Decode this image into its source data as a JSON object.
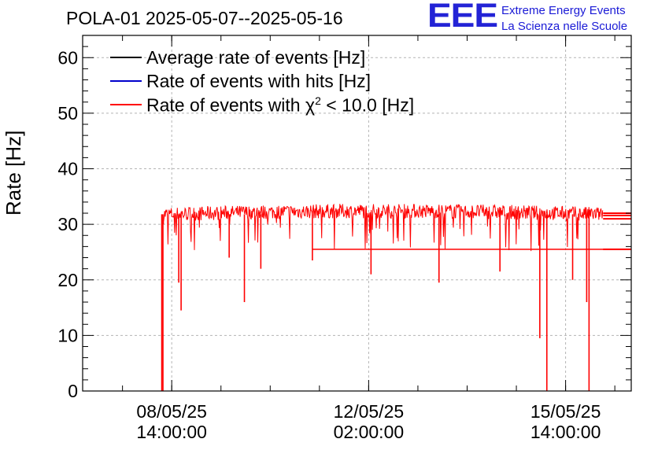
{
  "title": "POLA-01 2025-05-07--2025-05-16",
  "logo": {
    "mark": "EEE",
    "line1": "Extreme Energy Events",
    "line2": "La Scienza nelle Scuole"
  },
  "chart_data": {
    "type": "line",
    "ylabel": "Rate [Hz]",
    "ylim": [
      0,
      64
    ],
    "yticks": [
      0,
      10,
      20,
      30,
      40,
      50,
      60
    ],
    "grid": true,
    "legend_placement": "top-left",
    "xticks": [
      {
        "line1": "08/05/25",
        "line2": "14:00:00"
      },
      {
        "line1": "12/05/25",
        "line2": "02:00:00"
      },
      {
        "line1": "15/05/25",
        "line2": "14:00:00"
      }
    ],
    "x_range_days": {
      "start": "2025-05-07",
      "end": "2025-05-16"
    },
    "legend": [
      {
        "name": "Average rate of events [Hz]",
        "color": "#000000"
      },
      {
        "name": "Rate of events with hits [Hz]",
        "color": "#0000cc"
      },
      {
        "name_prefix": "Rate of events with ",
        "symbol": "χ",
        "superscript": "2",
        "name_suffix": " < 10.0 [Hz]",
        "color": "#ff0000"
      }
    ],
    "series": [
      {
        "color": "#ff0000",
        "x": [
          "08/05/25 09:30",
          "08/05/25 10:00",
          "08/05/25 10:30",
          "08/05/25 11:00",
          "08/05/25 12:00",
          "08/05/25 14:00",
          "09/05/25 02:00",
          "09/05/25 14:00",
          "10/05/25 02:00",
          "10/05/25 14:00",
          "11/05/25 02:00",
          "11/05/25 14:00",
          "12/05/25 02:00",
          "12/05/25 14:00",
          "13/05/25 02:00",
          "13/05/25 14:00",
          "14/05/25 02:00",
          "14/05/25 14:00",
          "15/05/25 02:00",
          "15/05/25 14:00",
          "16/05/25 02:00",
          "16/05/25 06:00",
          "16/05/25 12:00"
        ],
        "values": [
          0,
          30,
          0,
          31,
          31.5,
          31.5,
          31.7,
          31.8,
          31.9,
          32,
          32.1,
          32.2,
          32.3,
          32,
          31.9,
          31.8,
          31.7,
          31.8,
          31.6,
          31.7,
          31.7,
          32,
          32
        ],
        "baseline_mean": 31.8,
        "noise_upper": 33.5,
        "dips": [
          {
            "x": "08/05/25 09:45",
            "value": 0
          },
          {
            "x": "08/05/25 10:15",
            "value": 0
          },
          {
            "x": "08/05/25 17:00",
            "value": 19.5
          },
          {
            "x": "08/05/25 18:00",
            "value": 14.5
          },
          {
            "x": "09/05/25 14:30",
            "value": 24
          },
          {
            "x": "09/05/25 21:00",
            "value": 16
          },
          {
            "x": "10/05/25 04:00",
            "value": 22
          },
          {
            "x": "11/05/25 02:00",
            "value": 23.5
          },
          {
            "x": "12/05/25 03:00",
            "value": 21
          },
          {
            "x": "13/05/25 08:00",
            "value": 19.5
          },
          {
            "x": "14/05/25 10:00",
            "value": 21.5
          },
          {
            "x": "15/05/25 03:00",
            "value": 9.5
          },
          {
            "x": "15/05/25 06:00",
            "value": 0
          },
          {
            "x": "15/05/25 17:00",
            "value": 20
          },
          {
            "x": "15/05/25 23:00",
            "value": 16
          },
          {
            "x": "16/05/25 00:00",
            "value": 0
          }
        ],
        "tail_lines": [
          32,
          31.6,
          31,
          25.5
        ]
      }
    ]
  }
}
